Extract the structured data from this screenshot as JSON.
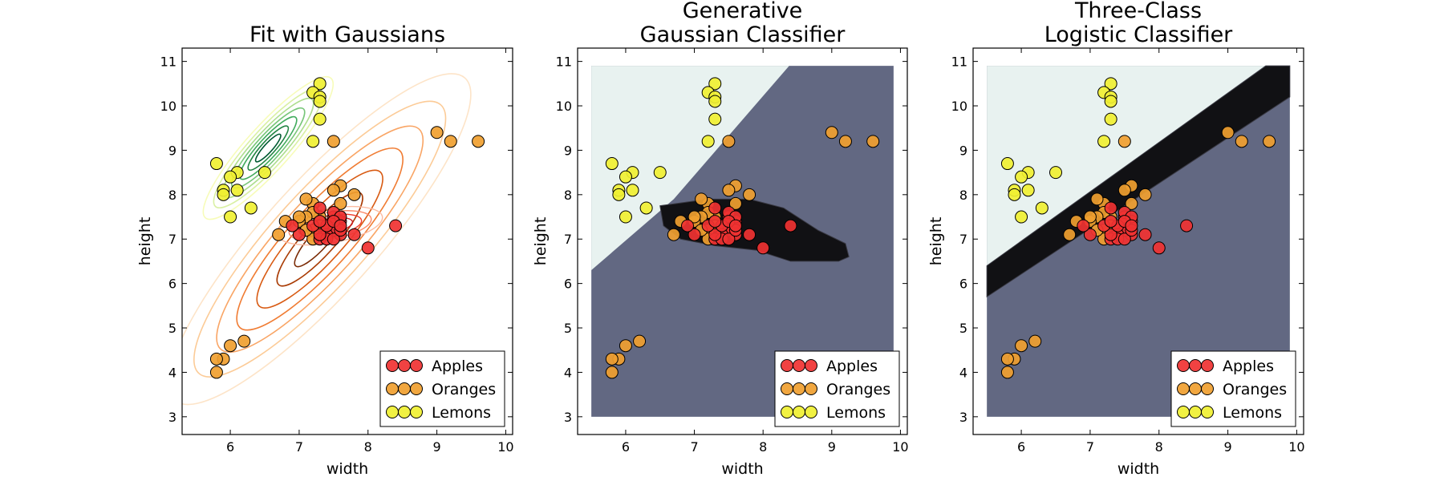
{
  "colors": {
    "apples": "#f03232",
    "oranges": "#f0a030",
    "lemons": "#f0f032",
    "region_lemon": "#e8f2f0",
    "region_orange": "#626882",
    "region_apple": "#111114"
  },
  "chart_data": [
    {
      "type": "scatter",
      "title_lines": [
        "Fit with Gaussians"
      ],
      "xlabel": "width",
      "ylabel": "height",
      "xlim": [
        5.3,
        10.1
      ],
      "ylim": [
        2.6,
        11.3
      ],
      "xticks": [
        6,
        7,
        8,
        9,
        10
      ],
      "yticks": [
        3,
        4,
        5,
        6,
        7,
        8,
        9,
        10,
        11
      ],
      "background": "none",
      "overlay": "gaussian-contours",
      "legend_position": "lower-right",
      "legend": [
        "Apples",
        "Oranges",
        "Lemons"
      ]
    },
    {
      "type": "scatter",
      "title_lines": [
        "Generative",
        "Gaussian Classifier"
      ],
      "xlabel": "width",
      "ylabel": "height",
      "xlim": [
        5.3,
        10.1
      ],
      "ylim": [
        2.6,
        11.3
      ],
      "xticks": [
        6,
        7,
        8,
        9,
        10
      ],
      "yticks": [
        3,
        4,
        5,
        6,
        7,
        8,
        9,
        10,
        11
      ],
      "background": "gaussian-regions",
      "overlay": "none",
      "legend_position": "lower-right",
      "legend": [
        "Apples",
        "Oranges",
        "Lemons"
      ]
    },
    {
      "type": "scatter",
      "title_lines": [
        "Three-Class",
        "Logistic Classifier"
      ],
      "xlabel": "width",
      "ylabel": "height",
      "xlim": [
        5.3,
        10.1
      ],
      "ylim": [
        2.6,
        11.3
      ],
      "xticks": [
        6,
        7,
        8,
        9,
        10
      ],
      "yticks": [
        3,
        4,
        5,
        6,
        7,
        8,
        9,
        10,
        11
      ],
      "background": "logistic-regions",
      "overlay": "none",
      "legend_position": "lower-right",
      "legend": [
        "Apples",
        "Oranges",
        "Lemons"
      ]
    }
  ],
  "series": {
    "apples": [
      [
        8.4,
        7.3
      ],
      [
        8.0,
        6.8
      ],
      [
        7.6,
        7.1
      ],
      [
        7.8,
        7.1
      ],
      [
        7.4,
        7.2
      ],
      [
        7.5,
        7.2
      ],
      [
        7.4,
        7.1
      ],
      [
        7.3,
        7.0
      ],
      [
        7.4,
        7.0
      ],
      [
        7.3,
        7.1
      ],
      [
        7.5,
        7.0
      ],
      [
        7.6,
        7.4
      ],
      [
        7.5,
        7.5
      ],
      [
        7.6,
        7.2
      ],
      [
        7.4,
        7.3
      ],
      [
        7.5,
        7.6
      ],
      [
        7.3,
        7.7
      ],
      [
        7.6,
        7.5
      ],
      [
        7.2,
        7.3
      ],
      [
        7.0,
        7.1
      ],
      [
        6.9,
        7.3
      ],
      [
        7.3,
        7.4
      ],
      [
        7.5,
        7.4
      ],
      [
        7.6,
        7.3
      ]
    ],
    "oranges": [
      [
        9.2,
        9.2
      ],
      [
        9.6,
        9.2
      ],
      [
        9.0,
        9.4
      ],
      [
        7.5,
        9.2
      ],
      [
        7.8,
        8.0
      ],
      [
        7.6,
        8.2
      ],
      [
        7.5,
        8.1
      ],
      [
        7.6,
        7.8
      ],
      [
        7.2,
        7.8
      ],
      [
        7.1,
        7.9
      ],
      [
        7.3,
        7.5
      ],
      [
        7.2,
        7.6
      ],
      [
        7.1,
        7.5
      ],
      [
        7.0,
        7.4
      ],
      [
        7.0,
        7.5
      ],
      [
        6.8,
        7.4
      ],
      [
        6.7,
        7.1
      ],
      [
        7.3,
        7.3
      ],
      [
        7.2,
        7.2
      ],
      [
        7.2,
        7.0
      ],
      [
        7.1,
        7.2
      ],
      [
        5.9,
        4.3
      ],
      [
        5.8,
        4.3
      ],
      [
        5.8,
        4.0
      ],
      [
        6.0,
        4.6
      ],
      [
        6.2,
        4.7
      ]
    ],
    "lemons": [
      [
        7.3,
        10.5
      ],
      [
        7.2,
        10.3
      ],
      [
        7.3,
        10.2
      ],
      [
        7.3,
        10.1
      ],
      [
        7.3,
        9.7
      ],
      [
        7.2,
        9.2
      ],
      [
        5.8,
        8.7
      ],
      [
        6.5,
        8.5
      ],
      [
        6.1,
        8.5
      ],
      [
        6.0,
        8.4
      ],
      [
        5.9,
        8.1
      ],
      [
        5.9,
        8.0
      ],
      [
        6.1,
        8.1
      ],
      [
        6.3,
        7.7
      ],
      [
        6.0,
        7.5
      ]
    ]
  }
}
